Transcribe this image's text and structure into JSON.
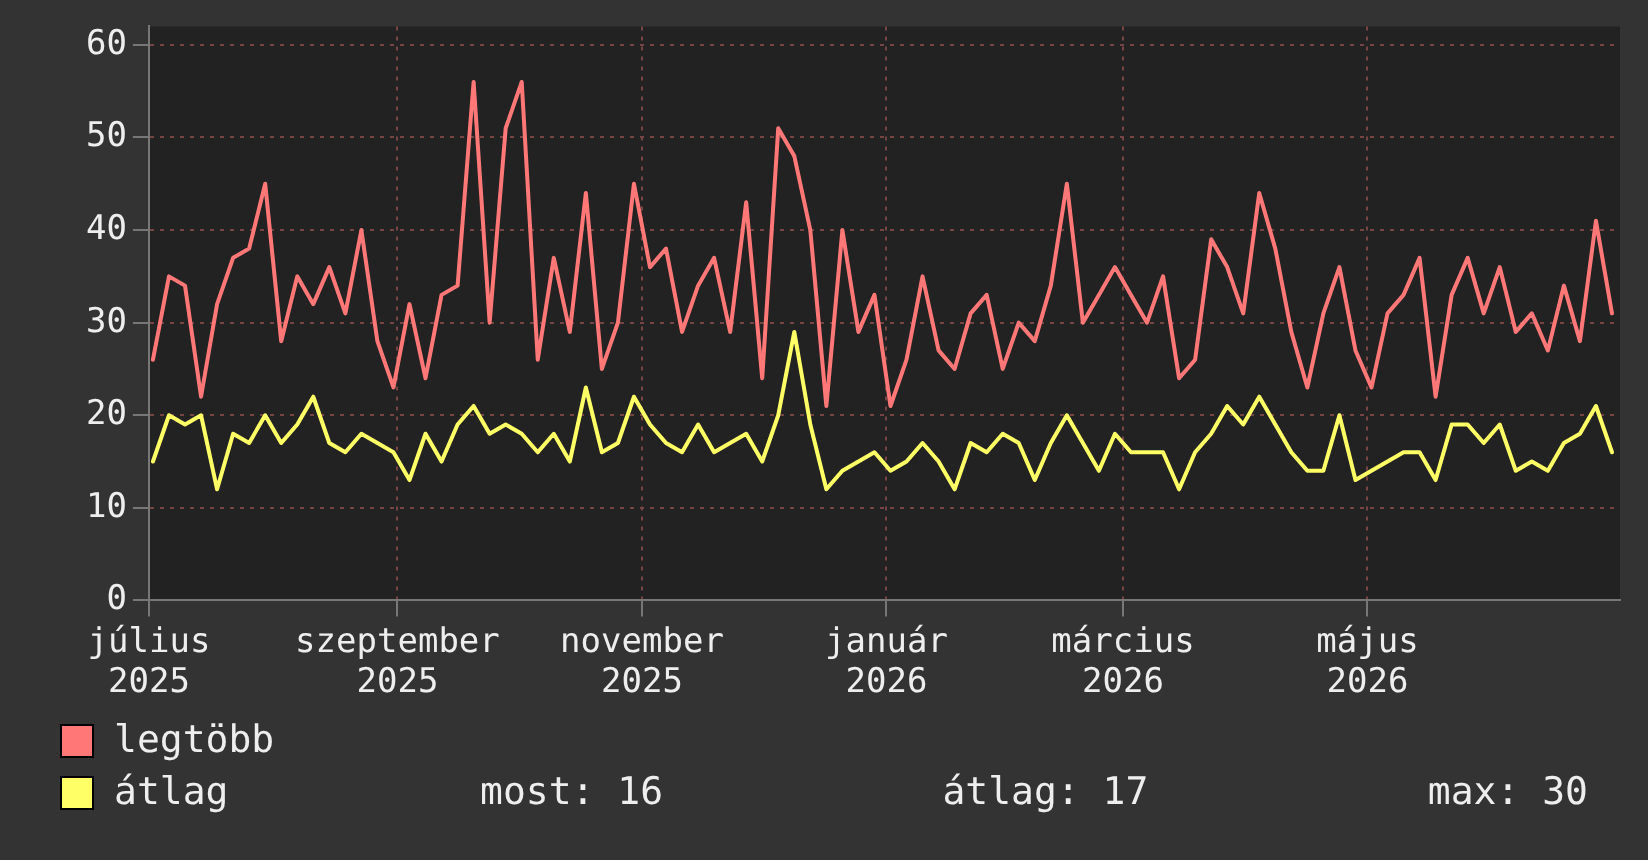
{
  "chart_data": {
    "type": "line",
    "x": [
      "2025-07-02",
      "2025-07-06",
      "2025-07-10",
      "2025-07-14",
      "2025-07-18",
      "2025-07-22",
      "2025-07-26",
      "2025-07-30",
      "2025-08-03",
      "2025-08-07",
      "2025-08-11",
      "2025-08-15",
      "2025-08-19",
      "2025-08-23",
      "2025-08-27",
      "2025-08-31",
      "2025-09-04",
      "2025-09-08",
      "2025-09-12",
      "2025-09-16",
      "2025-09-20",
      "2025-09-24",
      "2025-09-28",
      "2025-10-02",
      "2025-10-06",
      "2025-10-10",
      "2025-10-14",
      "2025-10-18",
      "2025-10-22",
      "2025-10-26",
      "2025-10-30",
      "2025-11-03",
      "2025-11-07",
      "2025-11-11",
      "2025-11-15",
      "2025-11-19",
      "2025-11-23",
      "2025-11-27",
      "2025-12-01",
      "2025-12-05",
      "2025-12-09",
      "2025-12-13",
      "2025-12-17",
      "2025-12-21",
      "2025-12-25",
      "2025-12-29",
      "2026-01-02",
      "2026-01-06",
      "2026-01-10",
      "2026-01-14",
      "2026-01-18",
      "2026-01-22",
      "2026-01-26",
      "2026-01-30",
      "2026-02-03",
      "2026-02-07",
      "2026-02-11",
      "2026-02-15",
      "2026-02-19",
      "2026-02-23",
      "2026-02-27",
      "2026-03-03",
      "2026-03-07",
      "2026-03-11",
      "2026-03-15",
      "2026-03-19",
      "2026-03-23",
      "2026-03-27",
      "2026-03-31",
      "2026-04-04",
      "2026-04-08",
      "2026-04-12",
      "2026-04-16",
      "2026-04-20",
      "2026-04-24",
      "2026-04-28",
      "2026-05-02",
      "2026-05-06",
      "2026-05-10",
      "2026-05-14",
      "2026-05-18",
      "2026-05-22",
      "2026-05-26",
      "2026-05-30",
      "2026-06-03",
      "2026-06-07",
      "2026-06-11",
      "2026-06-15",
      "2026-06-19",
      "2026-06-23",
      "2026-06-27",
      "2026-07-01"
    ],
    "series": [
      {
        "name": "legtöbb",
        "color": "#ff7777",
        "values": [
          26,
          35,
          34,
          22,
          32,
          37,
          38,
          45,
          28,
          35,
          32,
          36,
          31,
          40,
          28,
          23,
          32,
          24,
          33,
          34,
          56,
          30,
          51,
          56,
          26,
          37,
          29,
          44,
          25,
          30,
          45,
          36,
          38,
          29,
          34,
          37,
          29,
          43,
          24,
          51,
          48,
          40,
          21,
          40,
          29,
          33,
          21,
          26,
          35,
          27,
          25,
          31,
          33,
          25,
          30,
          28,
          34,
          45,
          30,
          33,
          36,
          33,
          30,
          35,
          24,
          26,
          39,
          36,
          31,
          44,
          38,
          29,
          23,
          31,
          36,
          27,
          23,
          31,
          33,
          37,
          22,
          33,
          37,
          31,
          36,
          29,
          31,
          27,
          34,
          28,
          41,
          31
        ]
      },
      {
        "name": "átlag",
        "color": "#ffff66",
        "values": [
          15,
          20,
          19,
          20,
          12,
          18,
          17,
          20,
          17,
          19,
          22,
          17,
          16,
          18,
          17,
          16,
          13,
          18,
          15,
          19,
          21,
          18,
          19,
          18,
          16,
          18,
          15,
          23,
          16,
          17,
          22,
          19,
          17,
          16,
          19,
          16,
          17,
          18,
          15,
          20,
          29,
          19,
          12,
          14,
          15,
          16,
          14,
          15,
          17,
          15,
          12,
          17,
          16,
          18,
          17,
          13,
          17,
          20,
          17,
          14,
          18,
          16,
          16,
          16,
          12,
          16,
          18,
          21,
          19,
          22,
          19,
          16,
          14,
          14,
          20,
          13,
          14,
          15,
          16,
          16,
          13,
          19,
          19,
          17,
          19,
          14,
          15,
          14,
          17,
          18,
          21,
          16
        ]
      }
    ],
    "xlim": [
      "2025-07-01",
      "2026-07-03"
    ],
    "xticks": [
      {
        "value": "2025-07-01",
        "label": "július 2025"
      },
      {
        "value": "2025-09-01",
        "label": "szeptember 2025"
      },
      {
        "value": "2025-11-01",
        "label": "november 2025"
      },
      {
        "value": "2026-01-01",
        "label": "január 2026"
      },
      {
        "value": "2026-03-01",
        "label": "március 2026"
      },
      {
        "value": "2026-05-01",
        "label": "május 2026"
      }
    ],
    "ylim": [
      0,
      62
    ],
    "yticks": [
      0,
      10,
      20,
      30,
      40,
      50,
      60
    ],
    "grid": true,
    "legend": "bottom",
    "annotations": [
      "most: 16",
      "átlag: 17",
      "max: 30"
    ]
  }
}
